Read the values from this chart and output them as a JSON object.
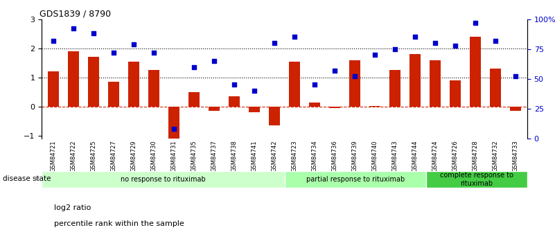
{
  "title": "GDS1839 / 8790",
  "samples": [
    "GSM84721",
    "GSM84722",
    "GSM84725",
    "GSM84727",
    "GSM84729",
    "GSM84730",
    "GSM84731",
    "GSM84735",
    "GSM84737",
    "GSM84738",
    "GSM84741",
    "GSM84742",
    "GSM84723",
    "GSM84734",
    "GSM84736",
    "GSM84739",
    "GSM84740",
    "GSM84743",
    "GSM84744",
    "GSM84724",
    "GSM84726",
    "GSM84728",
    "GSM84732",
    "GSM84733"
  ],
  "log2_ratio": [
    1.2,
    1.9,
    1.7,
    0.85,
    1.55,
    1.25,
    -1.1,
    0.5,
    -0.15,
    0.35,
    -0.2,
    -0.65,
    1.55,
    0.15,
    -0.05,
    1.6,
    0.02,
    1.25,
    1.8,
    1.6,
    0.9,
    2.4,
    1.3,
    -0.15
  ],
  "percentile": [
    82,
    92,
    88,
    72,
    79,
    72,
    8,
    60,
    65,
    45,
    40,
    80,
    85,
    45,
    57,
    52,
    70,
    75,
    85,
    80,
    78,
    97,
    82,
    52
  ],
  "bar_color": "#cc2200",
  "dot_color": "#0000cc",
  "bg_color": "#ffffff",
  "ylim_left": [
    -1.1,
    3.0
  ],
  "ylim_right": [
    0,
    100
  ],
  "yticks_left": [
    -1,
    0,
    1,
    2,
    3
  ],
  "yticks_right": [
    0,
    25,
    50,
    75,
    100
  ],
  "ytick_labels_right": [
    "0",
    "25",
    "50",
    "75",
    "100%"
  ],
  "hlines": [
    0.0,
    1.0,
    2.0
  ],
  "hline_styles": [
    "dashed",
    "dotted",
    "dotted"
  ],
  "hline_colors": [
    "#cc2200",
    "#000000",
    "#000000"
  ],
  "groups": [
    {
      "label": "no response to rituximab",
      "start": 0,
      "end": 12,
      "color": "#ccffcc"
    },
    {
      "label": "partial response to rituximab",
      "start": 12,
      "end": 19,
      "color": "#aaffaa"
    },
    {
      "label": "complete response to\nrituximab",
      "start": 19,
      "end": 24,
      "color": "#44cc44"
    }
  ],
  "legend_items": [
    {
      "label": "log2 ratio",
      "color": "#cc2200"
    },
    {
      "label": "percentile rank within the sample",
      "color": "#0000cc"
    }
  ],
  "disease_state_label": "disease state",
  "bar_width": 0.55,
  "n_samples": 24
}
